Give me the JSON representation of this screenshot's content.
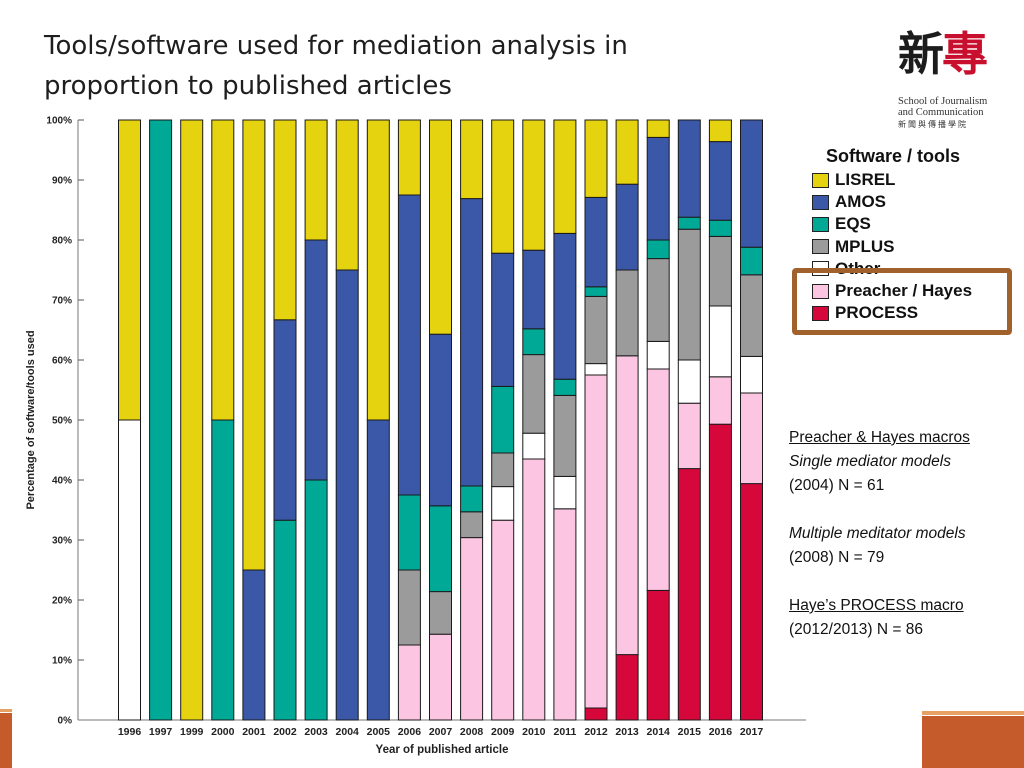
{
  "slide": {
    "title_line1": "Tools/software used for mediation analysis in",
    "title_line2": "proportion to published articles"
  },
  "logo": {
    "chars_black": "新",
    "chars_red": "專",
    "school_line1": "School of Journalism",
    "school_line2": "and Communication",
    "chinese": "新聞與傳播學院"
  },
  "legend": {
    "title": "Software / tools",
    "items": [
      {
        "label": "LISREL",
        "color": "#e6d30f"
      },
      {
        "label": "AMOS",
        "color": "#3b58a8"
      },
      {
        "label": "EQS",
        "color": "#00a896"
      },
      {
        "label": "MPLUS",
        "color": "#9b9b9b"
      },
      {
        "label": "Other",
        "color": "#ffffff"
      },
      {
        "label": "Preacher / Hayes",
        "color": "#fcc6e2"
      },
      {
        "label": "PROCESS",
        "color": "#d6083b"
      }
    ]
  },
  "notes": {
    "line1": "Preacher & Hayes macros",
    "line2": "Single mediator models",
    "line3": "(2004) N = 61",
    "line4": "Multiple meditator models",
    "line5": "(2008) N = 79",
    "line6": "Haye’s PROCESS macro",
    "line7": "(2012/2013) N = 86"
  },
  "chart_data": {
    "type": "bar",
    "stacked": true,
    "percent": true,
    "xlabel": "Year of published article",
    "ylabel": "Percentage of software/tools used",
    "ylim": [
      0,
      100
    ],
    "yticks": [
      "0%",
      "10%",
      "20%",
      "30%",
      "40%",
      "50%",
      "60%",
      "70%",
      "80%",
      "90%",
      "100%"
    ],
    "categories": [
      "1996",
      "1997",
      "1999",
      "2000",
      "2001",
      "2002",
      "2003",
      "2004",
      "2005",
      "2006",
      "2007",
      "2008",
      "2009",
      "2010",
      "2011",
      "2012",
      "2013",
      "2014",
      "2015",
      "2016",
      "2017"
    ],
    "series": [
      {
        "name": "PROCESS",
        "color": "#d6083b",
        "values": [
          0,
          0,
          0,
          0,
          0,
          0,
          0,
          0,
          0,
          0,
          0,
          0,
          0,
          0,
          0,
          2,
          10.9,
          21.6,
          41.9,
          49.3,
          39.4
        ]
      },
      {
        "name": "Preacher / Hayes",
        "color": "#fcc6e2",
        "values": [
          0,
          0,
          0,
          0,
          0,
          0,
          0,
          0,
          0,
          12.5,
          14.3,
          30.4,
          33.3,
          43.5,
          35.2,
          55.5,
          49.8,
          36.9,
          10.9,
          7.9,
          15.1
        ]
      },
      {
        "name": "Other",
        "color": "#ffffff",
        "values": [
          50,
          0,
          0,
          0,
          0,
          0,
          0,
          0,
          0,
          0,
          0,
          0,
          5.6,
          4.3,
          5.4,
          1.9,
          0,
          4.6,
          7.2,
          11.8,
          6.1
        ]
      },
      {
        "name": "MPLUS",
        "color": "#9b9b9b",
        "values": [
          0,
          0,
          0,
          0,
          0,
          0,
          0,
          0,
          0,
          12.5,
          7.1,
          4.3,
          5.6,
          13.1,
          13.5,
          11.2,
          14.3,
          13.8,
          21.8,
          11.6,
          13.6
        ]
      },
      {
        "name": "EQS",
        "color": "#00a896",
        "values": [
          0,
          100,
          0,
          50,
          0,
          33.3,
          40,
          0,
          0,
          12.5,
          14.3,
          4.3,
          11.1,
          4.3,
          2.7,
          1.6,
          0,
          3.1,
          2,
          2.7,
          4.6
        ]
      },
      {
        "name": "AMOS",
        "color": "#3b58a8",
        "values": [
          0,
          0,
          0,
          0,
          25,
          33.4,
          40,
          75,
          50,
          50,
          28.6,
          47.9,
          22.2,
          13.1,
          24.3,
          14.9,
          14.3,
          17.1,
          16.2,
          13.1,
          21.2
        ]
      },
      {
        "name": "LISREL",
        "color": "#e6d30f",
        "values": [
          50,
          0,
          100,
          50,
          75,
          33.3,
          20,
          25,
          50,
          12.5,
          35.7,
          13.1,
          22.2,
          21.7,
          18.9,
          12.9,
          10.7,
          2.9,
          0,
          3.6,
          0
        ]
      }
    ]
  }
}
